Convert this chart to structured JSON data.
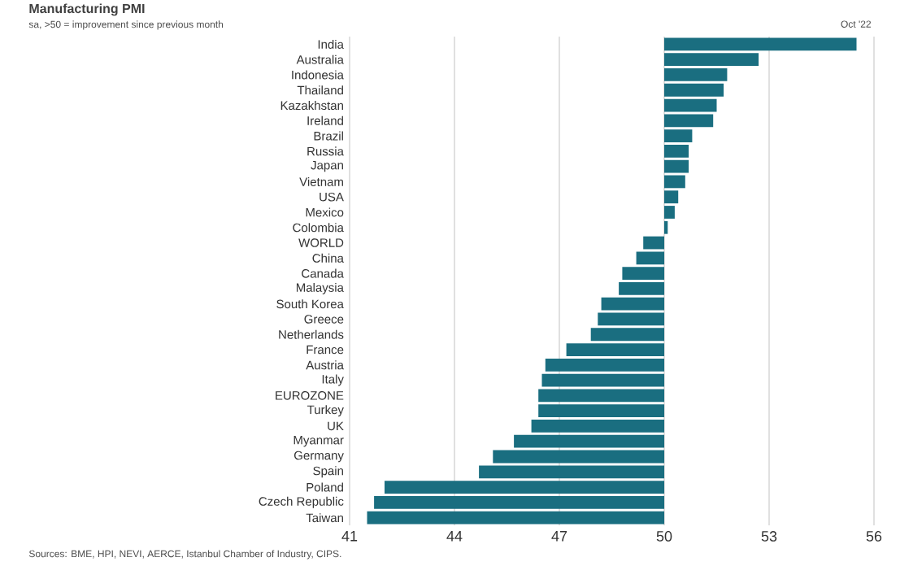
{
  "chart_data": {
    "type": "bar",
    "orientation": "horizontal",
    "title": "Manufacturing PMI",
    "subtitle": "sa, >50 = improvement since previous month",
    "annotations": [
      "Oct '22",
      "Sources: BME, HPI, NEVI, AERCE, Istanbul Chamber of Industry, CIPS."
    ],
    "categories": [
      "India",
      "Australia",
      "Indonesia",
      "Thailand",
      "Kazakhstan",
      "Ireland",
      "Brazil",
      "Russia",
      "Japan",
      "Vietnam",
      "USA",
      "Mexico",
      "Colombia",
      "WORLD",
      "China",
      "Canada",
      "Malaysia",
      "South Korea",
      "Greece",
      "Netherlands",
      "France",
      "Austria",
      "Italy",
      "EUROZONE",
      "Turkey",
      "UK",
      "Myanmar",
      "Germany",
      "Spain",
      "Poland",
      "Czech Republic",
      "Taiwan"
    ],
    "base": [
      50,
      50,
      50,
      50,
      50,
      50,
      50,
      50,
      50,
      50,
      50,
      50,
      50,
      50,
      50,
      50,
      50,
      50,
      50,
      50,
      50,
      50,
      50,
      50,
      50,
      50,
      50,
      50,
      50,
      50,
      50,
      50
    ],
    "values": [
      5.5,
      2.7,
      1.8,
      1.7,
      1.5,
      1.4,
      0.8,
      0.7,
      0.7,
      0.6,
      0.4,
      0.3,
      0.1,
      -0.6,
      -0.8,
      -1.2,
      -1.3,
      -1.8,
      -1.9,
      -2.1,
      -2.8,
      -3.4,
      -3.5,
      -3.6,
      -3.6,
      -3.8,
      -4.3,
      -4.9,
      -5.3,
      -8.0,
      -8.3,
      -8.5
    ],
    "color": "#1a6e80",
    "xlim": [
      41,
      56
    ],
    "xticks": [
      41,
      44,
      47,
      50,
      53,
      56
    ],
    "grid": "x"
  }
}
